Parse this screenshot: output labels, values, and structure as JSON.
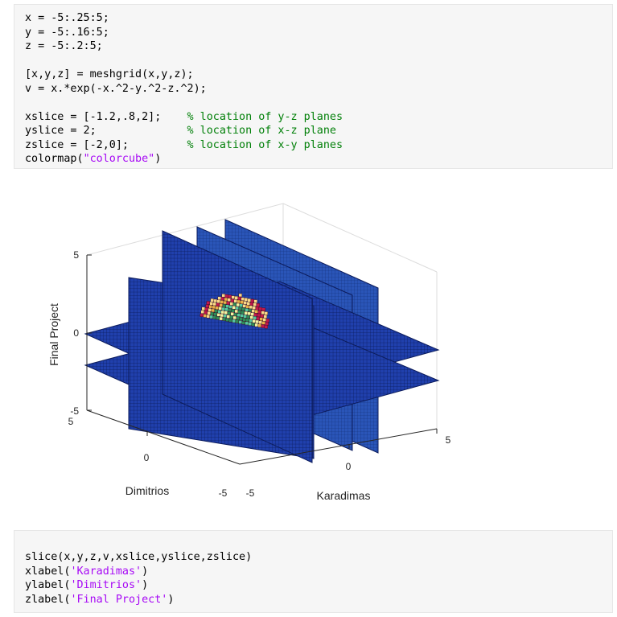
{
  "code_top": {
    "lines": [
      [
        {
          "t": "x = -5:.25:5;",
          "c": ""
        }
      ],
      [
        {
          "t": "y = -5:.16:5;",
          "c": ""
        }
      ],
      [
        {
          "t": "z = -5:.2:5;",
          "c": ""
        }
      ],
      [
        {
          "t": "",
          "c": ""
        }
      ],
      [
        {
          "t": "[x,y,z] = meshgrid(x,y,z);",
          "c": ""
        }
      ],
      [
        {
          "t": "v = x.*exp(-x.^2-y.^2-z.^2);",
          "c": ""
        }
      ],
      [
        {
          "t": "",
          "c": ""
        }
      ],
      [
        {
          "t": "xslice = [-1.2,.8,2];    ",
          "c": ""
        },
        {
          "t": "% location of y-z planes",
          "c": "cm"
        }
      ],
      [
        {
          "t": "yslice = 2;              ",
          "c": ""
        },
        {
          "t": "% location of x-z plane",
          "c": "cm"
        }
      ],
      [
        {
          "t": "zslice = [-2,0];         ",
          "c": ""
        },
        {
          "t": "% location of x-y planes",
          "c": "cm"
        }
      ],
      [
        {
          "t": "colormap(",
          "c": ""
        },
        {
          "t": "\"colorcube\"",
          "c": "str"
        },
        {
          "t": ")",
          "c": ""
        }
      ]
    ]
  },
  "code_bottom": {
    "lines": [
      [
        {
          "t": "slice(x,y,z,v,xslice,yslice,zslice)",
          "c": ""
        }
      ],
      [
        {
          "t": "xlabel(",
          "c": ""
        },
        {
          "t": "'Karadimas'",
          "c": "str"
        },
        {
          "t": ")",
          "c": ""
        }
      ],
      [
        {
          "t": "ylabel(",
          "c": ""
        },
        {
          "t": "'Dimitrios'",
          "c": "str"
        },
        {
          "t": ")",
          "c": ""
        }
      ],
      [
        {
          "t": "zlabel(",
          "c": ""
        },
        {
          "t": "'Final Project'",
          "c": "str"
        },
        {
          "t": ")",
          "c": ""
        }
      ]
    ]
  },
  "figure": {
    "xlabel": "Karadimas",
    "ylabel": "Dimitrios",
    "zlabel": "Final Project",
    "x_ticks": [
      "-5",
      "0",
      "5"
    ],
    "y_ticks": [
      "5",
      "0",
      "-5"
    ],
    "z_ticks": [
      "5",
      "0",
      "-5"
    ],
    "colors": {
      "slice_fill": "#1f3fa8",
      "slice_grid": "#0b1a55",
      "box_line": "#d9d9d9",
      "axis_line": "#262626",
      "blob_colors": [
        "#f7d88a",
        "#e8b04a",
        "#c0184c",
        "#2e8b57",
        "#55c8a0",
        "#f2f2a0"
      ]
    }
  }
}
